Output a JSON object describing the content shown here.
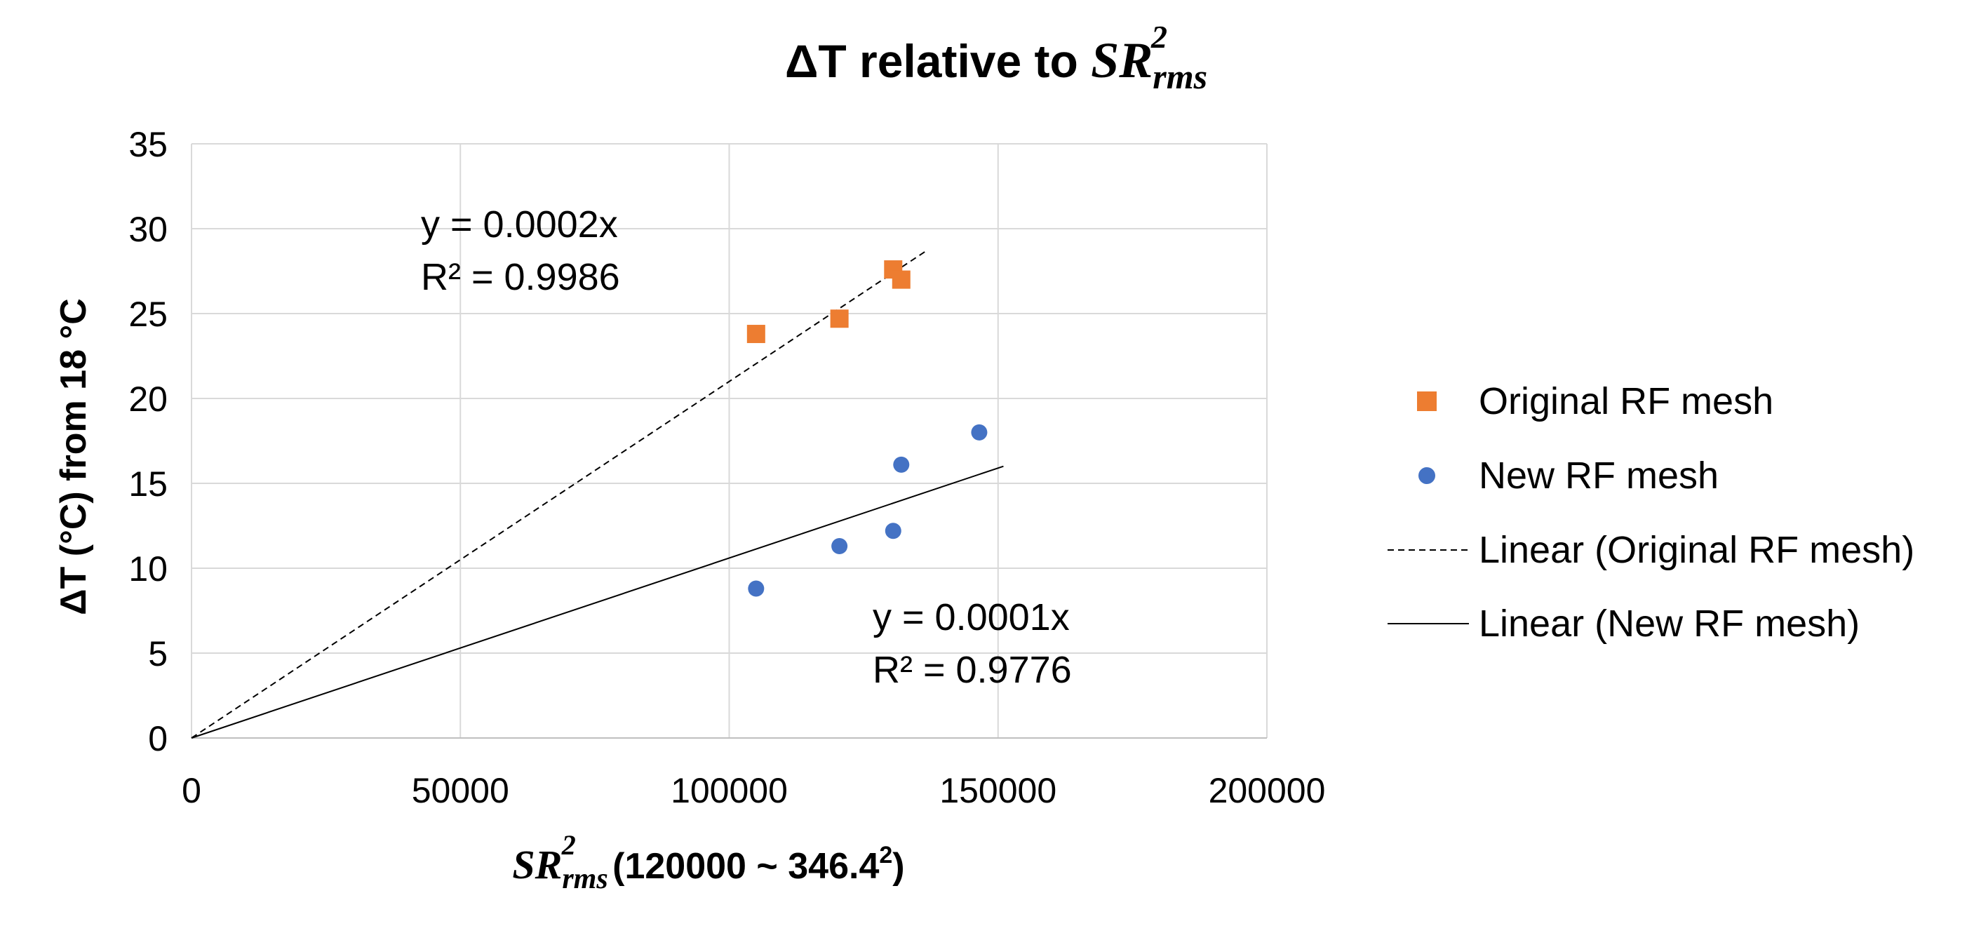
{
  "chart_data": {
    "type": "scatter",
    "title": {
      "prefix": "ΔT relative to ",
      "math_base": "SR",
      "math_sub": "rms",
      "math_sup": "2"
    },
    "xlabel": {
      "math_base": "SR",
      "math_sub": "rms",
      "math_sup": "2",
      "suffix_main": " (120000 ~ 346.4",
      "suffix_sup": "2",
      "suffix_end": ")"
    },
    "ylabel": "ΔT (°C) from 18 °C",
    "xlim": [
      0,
      200000
    ],
    "ylim": [
      0,
      35
    ],
    "x_ticks": [
      0,
      50000,
      100000,
      150000,
      200000
    ],
    "x_tick_labels": [
      "0",
      "50000",
      "100000",
      "150000",
      "200000"
    ],
    "y_ticks": [
      0,
      5,
      10,
      15,
      20,
      25,
      30,
      35
    ],
    "y_tick_labels": [
      "0",
      "5",
      "10",
      "15",
      "20",
      "25",
      "30",
      "35"
    ],
    "grid": true,
    "legend_position": "right",
    "series": [
      {
        "name": "Original RF mesh",
        "marker": "square",
        "color": "#ED7D31",
        "x": [
          105000,
          120500,
          130500,
          132000
        ],
        "y": [
          23.8,
          24.7,
          27.6,
          27.0
        ]
      },
      {
        "name": "New RF mesh",
        "marker": "circle",
        "color": "#4472C4",
        "x": [
          105000,
          120500,
          130500,
          132000,
          146500
        ],
        "y": [
          8.8,
          11.3,
          12.2,
          16.1,
          18.0
        ]
      }
    ],
    "trendlines": [
      {
        "name": "Linear (Original RF mesh)",
        "style": "dashed",
        "color": "#000000",
        "slope": 0.00021,
        "x_range": [
          0,
          137000
        ],
        "equation": "y = 0.0002x",
        "r2": "R² = 0.9986"
      },
      {
        "name": "Linear (New RF mesh)",
        "style": "solid",
        "color": "#000000",
        "slope": 0.000106,
        "x_range": [
          0,
          151000
        ],
        "equation": "y = 0.0001x",
        "r2": "R² = 0.9776"
      }
    ]
  }
}
